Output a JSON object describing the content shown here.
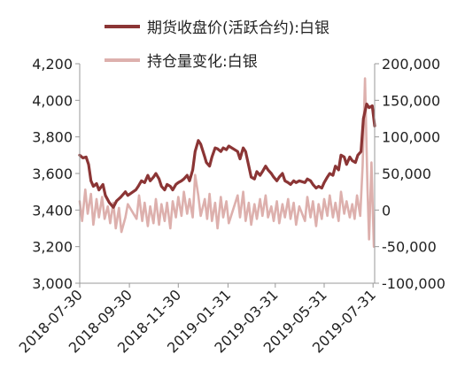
{
  "chart_data": {
    "type": "line",
    "grid": false,
    "legend_position": "top",
    "y_left": {
      "ylim": [
        3000,
        4200
      ],
      "ticks": [
        "3,000",
        "3,200",
        "3,400",
        "3,600",
        "3,800",
        "4,000",
        "4,200"
      ]
    },
    "y_right": {
      "ylim": [
        -100000,
        200000
      ],
      "ticks": [
        "-100,000",
        "-50,000",
        "0",
        "50,000",
        "100,000",
        "150,000",
        "200,000"
      ]
    },
    "x_range": [
      "2018-07-30",
      "2019-08-02"
    ],
    "x_ticks": [
      "2018-07-30",
      "2018-09-30",
      "2018-11-30",
      "2019-01-31",
      "2019-03-31",
      "2019-05-31",
      "2019-07-31"
    ],
    "series": [
      {
        "name": "期货收盘价(活跃合约):白银",
        "axis": "left",
        "color": "#8b3535",
        "points": [
          [
            "2018-07-30",
            3700
          ],
          [
            "2018-08-03",
            3685
          ],
          [
            "2018-08-07",
            3690
          ],
          [
            "2018-08-10",
            3650
          ],
          [
            "2018-08-13",
            3560
          ],
          [
            "2018-08-16",
            3530
          ],
          [
            "2018-08-20",
            3545
          ],
          [
            "2018-08-23",
            3510
          ],
          [
            "2018-08-28",
            3540
          ],
          [
            "2018-08-31",
            3480
          ],
          [
            "2018-09-05",
            3440
          ],
          [
            "2018-09-10",
            3415
          ],
          [
            "2018-09-14",
            3450
          ],
          [
            "2018-09-19",
            3470
          ],
          [
            "2018-09-25",
            3500
          ],
          [
            "2018-09-28",
            3480
          ],
          [
            "2018-10-08",
            3510
          ],
          [
            "2018-10-11",
            3530
          ],
          [
            "2018-10-15",
            3560
          ],
          [
            "2018-10-19",
            3550
          ],
          [
            "2018-10-23",
            3590
          ],
          [
            "2018-10-26",
            3560
          ],
          [
            "2018-10-30",
            3580
          ],
          [
            "2018-11-02",
            3600
          ],
          [
            "2018-11-06",
            3570
          ],
          [
            "2018-11-09",
            3530
          ],
          [
            "2018-11-13",
            3510
          ],
          [
            "2018-11-16",
            3540
          ],
          [
            "2018-11-20",
            3530
          ],
          [
            "2018-11-23",
            3510
          ],
          [
            "2018-11-27",
            3540
          ],
          [
            "2018-11-30",
            3550
          ],
          [
            "2018-12-04",
            3560
          ],
          [
            "2018-12-07",
            3570
          ],
          [
            "2018-12-11",
            3590
          ],
          [
            "2018-12-14",
            3560
          ],
          [
            "2018-12-18",
            3620
          ],
          [
            "2018-12-21",
            3720
          ],
          [
            "2018-12-25",
            3780
          ],
          [
            "2018-12-28",
            3760
          ],
          [
            "2019-01-02",
            3690
          ],
          [
            "2019-01-04",
            3660
          ],
          [
            "2019-01-08",
            3640
          ],
          [
            "2019-01-11",
            3690
          ],
          [
            "2019-01-15",
            3740
          ],
          [
            "2019-01-18",
            3735
          ],
          [
            "2019-01-22",
            3720
          ],
          [
            "2019-01-25",
            3740
          ],
          [
            "2019-01-29",
            3730
          ],
          [
            "2019-02-01",
            3750
          ],
          [
            "2019-02-12",
            3720
          ],
          [
            "2019-02-15",
            3680
          ],
          [
            "2019-02-19",
            3740
          ],
          [
            "2019-02-22",
            3720
          ],
          [
            "2019-02-26",
            3640
          ],
          [
            "2019-03-01",
            3580
          ],
          [
            "2019-03-05",
            3570
          ],
          [
            "2019-03-08",
            3610
          ],
          [
            "2019-03-12",
            3590
          ],
          [
            "2019-03-15",
            3610
          ],
          [
            "2019-03-19",
            3640
          ],
          [
            "2019-03-22",
            3620
          ],
          [
            "2019-03-26",
            3600
          ],
          [
            "2019-03-29",
            3580
          ],
          [
            "2019-04-02",
            3560
          ],
          [
            "2019-04-05",
            3580
          ],
          [
            "2019-04-09",
            3600
          ],
          [
            "2019-04-12",
            3560
          ],
          [
            "2019-04-16",
            3550
          ],
          [
            "2019-04-19",
            3540
          ],
          [
            "2019-04-23",
            3560
          ],
          [
            "2019-04-26",
            3550
          ],
          [
            "2019-04-30",
            3560
          ],
          [
            "2019-05-07",
            3550
          ],
          [
            "2019-05-10",
            3570
          ],
          [
            "2019-05-14",
            3560
          ],
          [
            "2019-05-17",
            3540
          ],
          [
            "2019-05-21",
            3520
          ],
          [
            "2019-05-24",
            3530
          ],
          [
            "2019-05-28",
            3520
          ],
          [
            "2019-05-31",
            3550
          ],
          [
            "2019-06-04",
            3580
          ],
          [
            "2019-06-07",
            3600
          ],
          [
            "2019-06-11",
            3590
          ],
          [
            "2019-06-14",
            3640
          ],
          [
            "2019-06-18",
            3620
          ],
          [
            "2019-06-21",
            3700
          ],
          [
            "2019-06-25",
            3690
          ],
          [
            "2019-06-28",
            3650
          ],
          [
            "2019-07-02",
            3690
          ],
          [
            "2019-07-05",
            3670
          ],
          [
            "2019-07-09",
            3660
          ],
          [
            "2019-07-12",
            3700
          ],
          [
            "2019-07-16",
            3720
          ],
          [
            "2019-07-19",
            3900
          ],
          [
            "2019-07-23",
            3980
          ],
          [
            "2019-07-26",
            3960
          ],
          [
            "2019-07-30",
            3970
          ],
          [
            "2019-08-02",
            3860
          ]
        ]
      },
      {
        "name": "持仓量变化:白银",
        "axis": "right",
        "color": "#ddb0ad",
        "points": [
          [
            "2018-07-30",
            12000
          ],
          [
            "2018-08-02",
            -15000
          ],
          [
            "2018-08-06",
            28000
          ],
          [
            "2018-08-09",
            -5000
          ],
          [
            "2018-08-13",
            22000
          ],
          [
            "2018-08-16",
            -20000
          ],
          [
            "2018-08-20",
            15000
          ],
          [
            "2018-08-23",
            -10000
          ],
          [
            "2018-08-27",
            18000
          ],
          [
            "2018-08-30",
            -12000
          ],
          [
            "2018-09-03",
            5000
          ],
          [
            "2018-09-06",
            -18000
          ],
          [
            "2018-09-10",
            10000
          ],
          [
            "2018-09-13",
            -25000
          ],
          [
            "2018-09-17",
            3000
          ],
          [
            "2018-09-20",
            -30000
          ],
          [
            "2018-09-25",
            -10000
          ],
          [
            "2018-09-28",
            8000
          ],
          [
            "2018-10-09",
            -12000
          ],
          [
            "2018-10-12",
            20000
          ],
          [
            "2018-10-16",
            -15000
          ],
          [
            "2018-10-19",
            10000
          ],
          [
            "2018-10-23",
            -22000
          ],
          [
            "2018-10-26",
            5000
          ],
          [
            "2018-10-30",
            -18000
          ],
          [
            "2018-11-02",
            15000
          ],
          [
            "2018-11-06",
            -20000
          ],
          [
            "2018-11-09",
            8000
          ],
          [
            "2018-11-13",
            -15000
          ],
          [
            "2018-11-16",
            10000
          ],
          [
            "2018-11-20",
            -25000
          ],
          [
            "2018-11-23",
            12000
          ],
          [
            "2018-11-27",
            -10000
          ],
          [
            "2018-11-30",
            18000
          ],
          [
            "2018-12-04",
            -8000
          ],
          [
            "2018-12-07",
            25000
          ],
          [
            "2018-12-11",
            -5000
          ],
          [
            "2018-12-14",
            15000
          ],
          [
            "2018-12-18",
            -10000
          ],
          [
            "2018-12-21",
            48000
          ],
          [
            "2018-12-25",
            20000
          ],
          [
            "2018-12-28",
            -8000
          ],
          [
            "2019-01-02",
            15000
          ],
          [
            "2019-01-05",
            -12000
          ],
          [
            "2019-01-08",
            22000
          ],
          [
            "2019-01-11",
            -15000
          ],
          [
            "2019-01-15",
            10000
          ],
          [
            "2019-01-18",
            -25000
          ],
          [
            "2019-01-22",
            18000
          ],
          [
            "2019-01-25",
            -10000
          ],
          [
            "2019-01-29",
            12000
          ],
          [
            "2019-02-01",
            -18000
          ],
          [
            "2019-02-12",
            20000
          ],
          [
            "2019-02-15",
            -10000
          ],
          [
            "2019-02-19",
            25000
          ],
          [
            "2019-02-22",
            -15000
          ],
          [
            "2019-02-26",
            10000
          ],
          [
            "2019-03-01",
            -20000
          ],
          [
            "2019-03-05",
            8000
          ],
          [
            "2019-03-08",
            -12000
          ],
          [
            "2019-03-12",
            15000
          ],
          [
            "2019-03-15",
            -8000
          ],
          [
            "2019-03-19",
            20000
          ],
          [
            "2019-03-22",
            -10000
          ],
          [
            "2019-03-26",
            5000
          ],
          [
            "2019-03-29",
            -15000
          ],
          [
            "2019-04-02",
            12000
          ],
          [
            "2019-04-05",
            -18000
          ],
          [
            "2019-04-09",
            8000
          ],
          [
            "2019-04-12",
            -10000
          ],
          [
            "2019-04-16",
            15000
          ],
          [
            "2019-04-19",
            -12000
          ],
          [
            "2019-04-23",
            10000
          ],
          [
            "2019-04-26",
            -20000
          ],
          [
            "2019-04-30",
            5000
          ],
          [
            "2019-05-07",
            -15000
          ],
          [
            "2019-05-10",
            18000
          ],
          [
            "2019-05-14",
            -10000
          ],
          [
            "2019-05-17",
            12000
          ],
          [
            "2019-05-21",
            -22000
          ],
          [
            "2019-05-24",
            8000
          ],
          [
            "2019-05-28",
            -12000
          ],
          [
            "2019-05-31",
            15000
          ],
          [
            "2019-06-04",
            -8000
          ],
          [
            "2019-06-07",
            20000
          ],
          [
            "2019-06-11",
            -10000
          ],
          [
            "2019-06-14",
            10000
          ],
          [
            "2019-06-18",
            -15000
          ],
          [
            "2019-06-21",
            25000
          ],
          [
            "2019-06-25",
            -5000
          ],
          [
            "2019-06-28",
            12000
          ],
          [
            "2019-07-02",
            -10000
          ],
          [
            "2019-07-05",
            8000
          ],
          [
            "2019-07-08",
            -12000
          ],
          [
            "2019-07-11",
            20000
          ],
          [
            "2019-07-15",
            -8000
          ],
          [
            "2019-07-18",
            60000
          ],
          [
            "2019-07-21",
            180000
          ],
          [
            "2019-07-24",
            30000
          ],
          [
            "2019-07-26",
            -40000
          ],
          [
            "2019-07-29",
            65000
          ],
          [
            "2019-08-01",
            -50000
          ]
        ]
      }
    ]
  }
}
